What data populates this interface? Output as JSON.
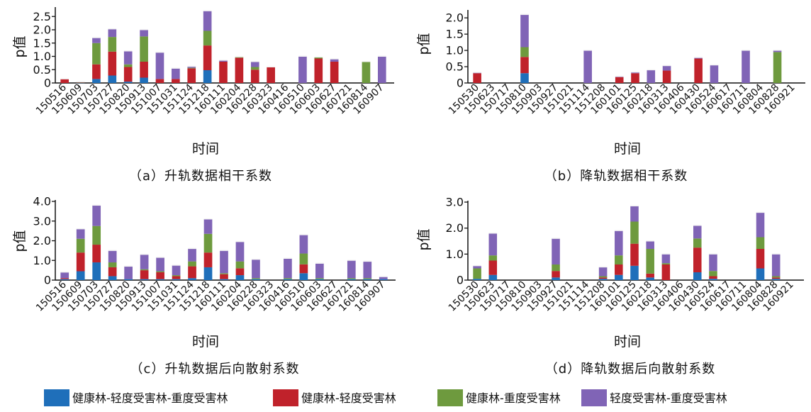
{
  "colors": {
    "s1": "#1f6fba",
    "s2": "#c0222b",
    "s3": "#6e9a3e",
    "s4": "#8064b6"
  },
  "legend": [
    {
      "key": "s1",
      "label": "健康林-轻度受害林-重度受害林"
    },
    {
      "key": "s2",
      "label": "健康林-轻度受害林"
    },
    {
      "key": "s3",
      "label": "健康林-重度受害林"
    },
    {
      "key": "s4",
      "label": "轻度受害林-重度受害林"
    }
  ],
  "chart_data": [
    {
      "type": "bar",
      "stacked": true,
      "caption": "（a）升轨数据相干系数",
      "ylabel": "p值",
      "xlabel": "时间",
      "ylim": [
        0,
        2.8
      ],
      "yticks": [
        "0",
        "0.5",
        "1.0",
        "1.5",
        "2.0",
        "2.5"
      ],
      "ytick_values": [
        0,
        0.5,
        1.0,
        1.5,
        2.0,
        2.5
      ],
      "categories": [
        "150516",
        "150609",
        "150703",
        "150727",
        "150820",
        "150913",
        "151007",
        "151031",
        "151124",
        "151218",
        "160111",
        "160204",
        "160228",
        "160323",
        "160416",
        "160510",
        "160603",
        "160627",
        "160721",
        "160814",
        "160907"
      ],
      "x_labels": [
        "150516",
        "150609",
        "150703",
        "150727",
        "150820",
        "150913",
        "151007",
        "151031",
        "151124",
        "151218",
        "160111",
        "160204",
        "160228",
        "160323",
        "160416",
        "160510",
        "160603",
        "160627",
        "160721",
        "160814",
        "160907"
      ],
      "series": [
        {
          "key": "s1",
          "values": [
            [
              0,
              0.01
            ],
            [
              0.01,
              0.01
            ],
            [
              0.15,
              0.01
            ],
            [
              0.28,
              0.01
            ],
            [
              0.05,
              0.01
            ],
            [
              0.2,
              0.01
            ],
            [
              0,
              0.01
            ],
            [
              0,
              0.01
            ],
            [
              0,
              0.01
            ],
            [
              0.48,
              0.01
            ],
            [
              0,
              0.01
            ],
            [
              0,
              0.01
            ],
            [
              0,
              0.01
            ],
            [
              0,
              0.01
            ],
            [
              0,
              0.01
            ],
            [
              0,
              0.01
            ],
            [
              0,
              0.01
            ],
            [
              0,
              0.01
            ],
            [
              0,
              0.01
            ],
            [
              0,
              0.01
            ],
            [
              0,
              0.01
            ]
          ]
        },
        {
          "key": "s2",
          "values": [
            [
              0.15,
              0.01
            ],
            [
              0.01,
              0.01
            ],
            [
              0.55,
              0.01
            ],
            [
              0.9,
              0.01
            ],
            [
              0.55,
              0.01
            ],
            [
              0.6,
              0.01
            ],
            [
              0.15,
              0.01
            ],
            [
              0.15,
              0.01
            ],
            [
              0.55,
              0.01
            ],
            [
              0.93,
              0.01
            ],
            [
              0.8,
              0.01
            ],
            [
              0.95,
              0.01
            ],
            [
              0.5,
              0.01
            ],
            [
              0.6,
              0.01
            ],
            [
              0,
              0.01
            ],
            [
              0,
              0.01
            ],
            [
              0.92,
              0.01
            ],
            [
              0.8,
              0.01
            ],
            [
              0,
              0.01
            ],
            [
              0,
              0.01
            ],
            [
              0,
              0.01
            ]
          ]
        },
        {
          "key": "s3",
          "values": [
            [
              0,
              0.01
            ],
            [
              0.01,
              0.01
            ],
            [
              0.8,
              0.01
            ],
            [
              0.55,
              0.01
            ],
            [
              0.1,
              0.01
            ],
            [
              0.95,
              0.01
            ],
            [
              0,
              0.01
            ],
            [
              0,
              0.01
            ],
            [
              0.02,
              0.01
            ],
            [
              0.55,
              0.01
            ],
            [
              0,
              0.01
            ],
            [
              0.03,
              0.01
            ],
            [
              0.1,
              0.01
            ],
            [
              0,
              0.01
            ],
            [
              0,
              0.01
            ],
            [
              0,
              0.01
            ],
            [
              0.05,
              0.01
            ],
            [
              0,
              0.01
            ],
            [
              0,
              0.01
            ],
            [
              0.8,
              0.01
            ],
            [
              0,
              0.01
            ]
          ]
        },
        {
          "key": "s4",
          "values": [
            [
              0,
              0.01
            ],
            [
              0.01,
              0.01
            ],
            [
              0.2,
              0.01
            ],
            [
              0.3,
              0.01
            ],
            [
              0.5,
              0.01
            ],
            [
              0.25,
              0.01
            ],
            [
              1.0,
              0.01
            ],
            [
              0.4,
              0.01
            ],
            [
              0.05,
              0.01
            ],
            [
              0.75,
              0.01
            ],
            [
              0.05,
              0.01
            ],
            [
              0,
              0.01
            ],
            [
              0.2,
              0.01
            ],
            [
              0,
              0.01
            ],
            [
              0,
              0.01
            ],
            [
              1.0,
              0.01
            ],
            [
              0,
              0.01
            ],
            [
              0.1,
              0.01
            ],
            [
              0,
              0.01
            ],
            [
              0,
              0.01
            ],
            [
              1.0,
              0.01
            ]
          ]
        }
      ]
    },
    {
      "type": "bar",
      "stacked": true,
      "caption": "（b）降轨数据相干系数",
      "ylabel": "p值",
      "xlabel": "时间",
      "ylim": [
        0,
        2.2
      ],
      "yticks": [
        "0",
        "0.5",
        "1.0",
        "1.5",
        "2.0"
      ],
      "ytick_values": [
        0,
        0.5,
        1.0,
        1.5,
        2.0
      ],
      "categories": [
        "150530",
        "150623",
        "150717",
        "150810",
        "150903",
        "150927",
        "151021",
        "151114",
        "151208",
        "160101",
        "160125",
        "160218",
        "160313",
        "160406",
        "160430",
        "160524",
        "160617",
        "160711",
        "160804",
        "160828",
        "160921"
      ],
      "x_labels": [
        "150530",
        "150623",
        "150717",
        "150810",
        "150903",
        "150927",
        "151021",
        "151114",
        "151208",
        "160101",
        "160125",
        "160218",
        "160313",
        "160406",
        "160430",
        "160524",
        "160617",
        "160711",
        "160804",
        "160828",
        "160921"
      ],
      "series": [
        {
          "key": "s1",
          "values": [
            0,
            0,
            0,
            0.3,
            0,
            0,
            0,
            0,
            0,
            0,
            0,
            0,
            0,
            0,
            0,
            0,
            0,
            0,
            0,
            0,
            0
          ]
        },
        {
          "key": "s2",
          "values": [
            0.3,
            0,
            0,
            0.5,
            0,
            0,
            0,
            0,
            0,
            0.18,
            0.3,
            0,
            0.38,
            0,
            0.75,
            0,
            0,
            0,
            0,
            0,
            0
          ]
        },
        {
          "key": "s3",
          "values": [
            0,
            0,
            0,
            0.3,
            0,
            0,
            0,
            0,
            0,
            0,
            0,
            0,
            0,
            0,
            0,
            0,
            0,
            0,
            0,
            0.95,
            0
          ]
        },
        {
          "key": "s4",
          "values": [
            0.02,
            0,
            0,
            1.0,
            0,
            0,
            0,
            1.0,
            0,
            0.02,
            0.03,
            0.4,
            0.15,
            0,
            0.03,
            0.55,
            0,
            1.0,
            0,
            0.05,
            0
          ]
        }
      ]
    },
    {
      "type": "bar",
      "stacked": true,
      "caption": "（c）升轨数据后向散射系数",
      "ylabel": "p值",
      "xlabel": "时间",
      "ylim": [
        0,
        4.0
      ],
      "yticks": [
        "0",
        "1.0",
        "2.0",
        "3.0",
        "4.0"
      ],
      "ytick_values": [
        0,
        1.0,
        2.0,
        3.0,
        4.0
      ],
      "categories": [
        "150516",
        "150609",
        "150703",
        "150727",
        "150820",
        "150913",
        "151007",
        "151031",
        "151124",
        "151218",
        "160111",
        "160204",
        "160228",
        "160323",
        "160416",
        "160510",
        "160603",
        "160627",
        "160721",
        "160814",
        "160907"
      ],
      "x_labels": [
        "150516",
        "150609",
        "150703",
        "150727",
        "150820",
        "150913",
        "151007",
        "151031",
        "151124",
        "151218",
        "160111",
        "160204",
        "160228",
        "160323",
        "160416",
        "160510",
        "160603",
        "160627",
        "160721",
        "160814",
        "160907"
      ],
      "series": [
        {
          "key": "s1",
          "values": [
            0.05,
            0.45,
            0.9,
            0.2,
            0.05,
            0.05,
            0.05,
            0.05,
            0.1,
            0.65,
            0.05,
            0.25,
            0.05,
            0,
            0.05,
            0.35,
            0.05,
            0,
            0.05,
            0.05,
            0.05
          ]
        },
        {
          "key": "s2",
          "values": [
            0.05,
            0.95,
            0.9,
            0.45,
            0,
            0.45,
            0.35,
            0.15,
            0.6,
            0.75,
            0.25,
            0.35,
            0,
            0,
            0,
            0.45,
            0,
            0,
            0,
            0,
            0
          ]
        },
        {
          "key": "s3",
          "values": [
            0,
            0.7,
            0.95,
            0.25,
            0,
            0.05,
            0.05,
            0.05,
            0.25,
            0.95,
            0.05,
            0.35,
            0.05,
            0,
            0.05,
            0.55,
            0.05,
            0,
            0.05,
            0.05,
            0
          ]
        },
        {
          "key": "s4",
          "values": [
            0.3,
            0.5,
            1.05,
            0.6,
            0.65,
            0.75,
            0.7,
            0.5,
            0.65,
            0.75,
            1.15,
            1.0,
            0.95,
            0,
            1.0,
            0.95,
            0.75,
            0,
            0.9,
            0.85,
            0.12
          ]
        }
      ]
    },
    {
      "type": "bar",
      "stacked": true,
      "caption": "（d）降轨数据后向散射系数",
      "ylabel": "p值",
      "xlabel": "时间",
      "ylim": [
        0,
        3.0
      ],
      "yticks": [
        "0",
        "1.0",
        "2.0",
        "3.0"
      ],
      "ytick_values": [
        0,
        1.0,
        2.0,
        3.0
      ],
      "categories": [
        "150530",
        "150623",
        "150717",
        "150810",
        "150903",
        "150927",
        "151021",
        "151114",
        "151208",
        "160101",
        "160125",
        "160218",
        "160313",
        "160406",
        "160430",
        "160524",
        "160617",
        "160711",
        "160804",
        "160828",
        "160921"
      ],
      "x_labels": [
        "150530",
        "150623",
        "150717",
        "150810",
        "150903",
        "150927",
        "151021",
        "151114",
        "151208",
        "160101",
        "160125",
        "160218",
        "160313",
        "160406",
        "160430",
        "160524",
        "160617",
        "160711",
        "160804",
        "160828",
        "160921"
      ],
      "series": [
        {
          "key": "s1",
          "values": [
            0.05,
            0.2,
            0,
            0,
            0,
            0.1,
            0,
            0,
            0.05,
            0.2,
            0.55,
            0.1,
            0,
            0,
            0.3,
            0.05,
            0,
            0,
            0.45,
            0.05,
            0
          ]
        },
        {
          "key": "s2",
          "values": [
            0,
            0.55,
            0,
            0,
            0,
            0.25,
            0,
            0,
            0.05,
            0.4,
            0.85,
            0.15,
            0.6,
            0,
            0.95,
            0.1,
            0,
            0,
            0.75,
            0.05,
            0
          ]
        },
        {
          "key": "s3",
          "values": [
            0.4,
            0.2,
            0,
            0,
            0,
            0.25,
            0,
            0,
            0.05,
            0.35,
            0.85,
            0.95,
            0.05,
            0,
            0.35,
            0.2,
            0,
            0,
            0.45,
            0.05,
            0
          ]
        },
        {
          "key": "s4",
          "values": [
            0.1,
            0.85,
            0,
            0,
            0,
            1.0,
            0,
            0,
            0.35,
            0.95,
            0.6,
            0.3,
            0.35,
            0,
            0.5,
            0.65,
            0,
            0,
            0.95,
            0.85,
            0
          ]
        }
      ]
    }
  ]
}
